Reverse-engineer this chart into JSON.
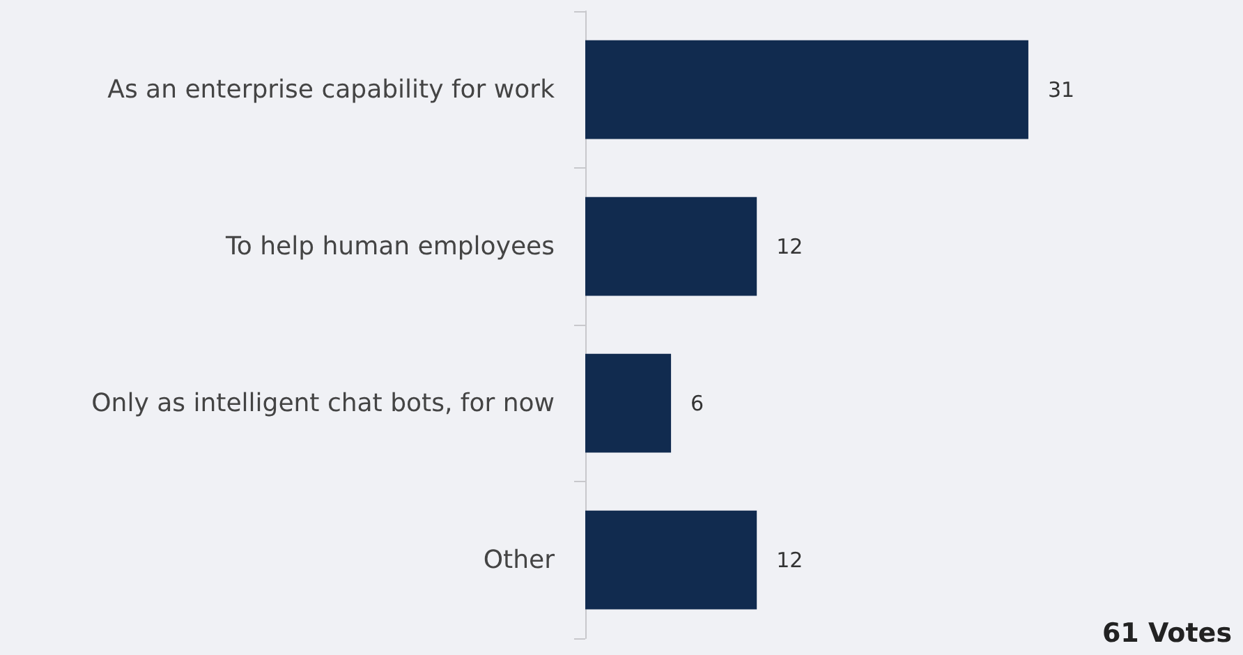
{
  "chart_data": {
    "type": "bar",
    "orientation": "horizontal",
    "categories": [
      "As an enterprise capability for work",
      "To help human employees",
      "Only as intelligent chat bots, for now",
      "Other"
    ],
    "values": [
      31,
      12,
      6,
      12
    ],
    "color": "#112b4f",
    "data_labels": true,
    "annotations": [
      "61 Votes"
    ]
  }
}
